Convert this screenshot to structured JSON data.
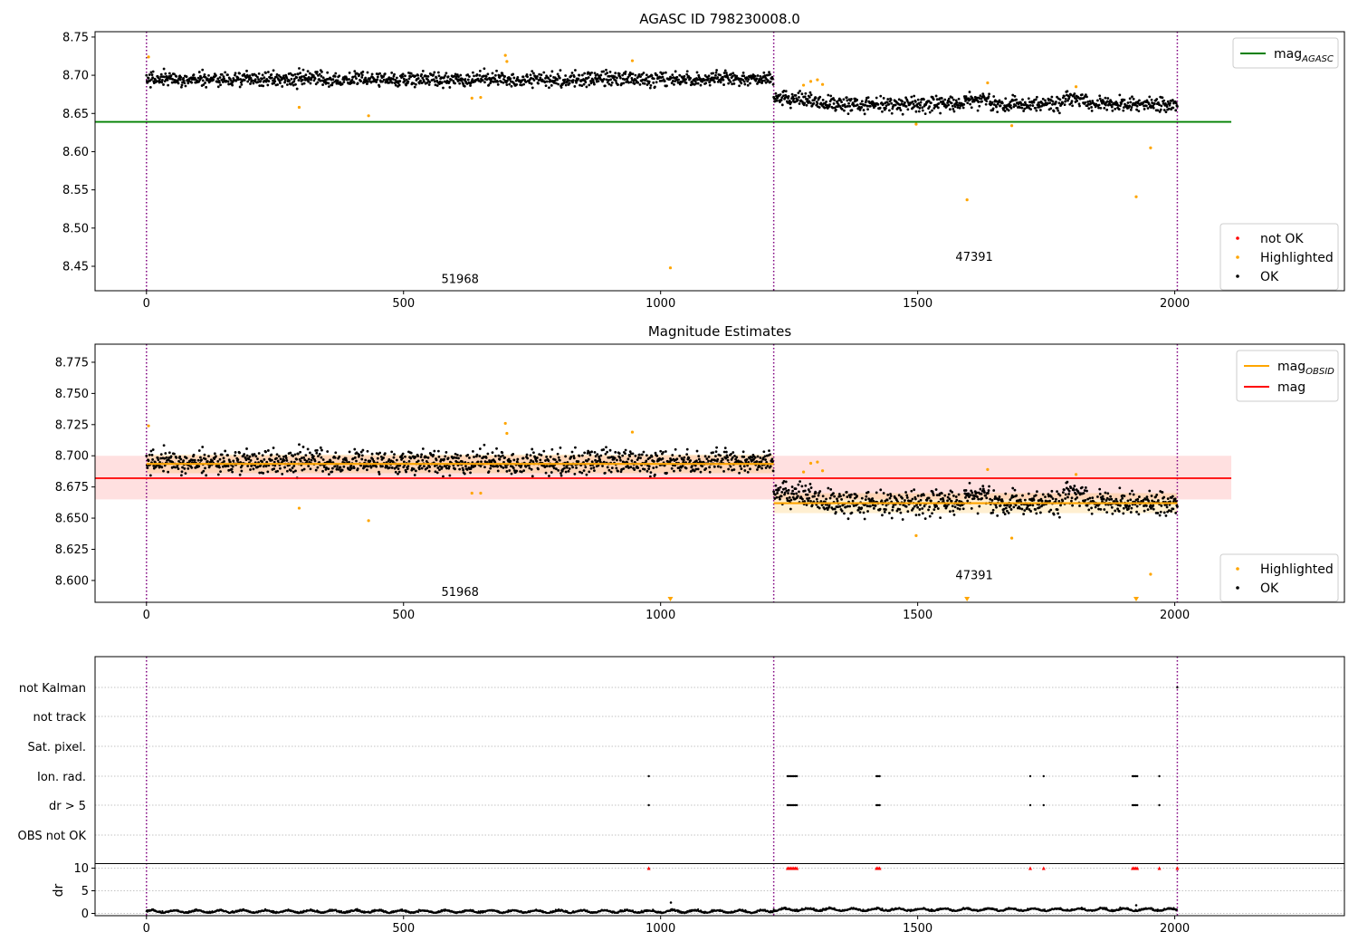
{
  "chart_data": [
    {
      "type": "scatter",
      "title": "AGASC ID 798230008.0",
      "xlim": [
        -100,
        2330
      ],
      "ylim": [
        8.418,
        8.757
      ],
      "x_ticks": [
        0,
        500,
        1000,
        1500,
        2000
      ],
      "y_ticks": [
        8.45,
        8.5,
        8.55,
        8.6,
        8.65,
        8.7,
        8.75
      ],
      "y_tick_labels": [
        "8.45",
        "8.50",
        "8.55",
        "8.60",
        "8.65",
        "8.70",
        "8.75"
      ],
      "obsid_boundaries": [
        0,
        1220,
        2005
      ],
      "obsid_labels": [
        {
          "text": "51968",
          "x": 610,
          "y": 8.428
        },
        {
          "text": "47391",
          "x": 1610,
          "y": 8.457
        }
      ],
      "reference_lines": [
        {
          "name": "mag",
          "subscript": "AGASC",
          "y": 8.639,
          "x_range": [
            -100,
            2110
          ],
          "color": "#008000"
        }
      ],
      "ok_segments": [
        {
          "x_range": [
            0,
            1218
          ],
          "mean": 8.695,
          "std": 0.007
        },
        {
          "x_range": [
            1222,
            2005
          ],
          "mean": 8.662,
          "std": 0.007
        }
      ],
      "highlighted": [
        {
          "x": 4,
          "y": 8.724
        },
        {
          "x": 297,
          "y": 8.658
        },
        {
          "x": 432,
          "y": 8.647
        },
        {
          "x": 633,
          "y": 8.67
        },
        {
          "x": 650,
          "y": 8.671
        },
        {
          "x": 698,
          "y": 8.726
        },
        {
          "x": 701,
          "y": 8.718
        },
        {
          "x": 945,
          "y": 8.719
        },
        {
          "x": 1019,
          "y": 8.448
        },
        {
          "x": 1278,
          "y": 8.687
        },
        {
          "x": 1292,
          "y": 8.692
        },
        {
          "x": 1305,
          "y": 8.694
        },
        {
          "x": 1315,
          "y": 8.688
        },
        {
          "x": 1497,
          "y": 8.636
        },
        {
          "x": 1596,
          "y": 8.537
        },
        {
          "x": 1636,
          "y": 8.69
        },
        {
          "x": 1683,
          "y": 8.634
        },
        {
          "x": 1808,
          "y": 8.685
        },
        {
          "x": 1925,
          "y": 8.541
        },
        {
          "x": 1953,
          "y": 8.605
        }
      ],
      "legend_lines": [
        {
          "label": "mag",
          "sub": "AGASC",
          "color": "#008000"
        }
      ],
      "legend_points": [
        {
          "label": "not OK",
          "color": "#ff0000"
        },
        {
          "label": "Highlighted",
          "color": "#ffa500"
        },
        {
          "label": "OK",
          "color": "#000000"
        }
      ]
    },
    {
      "type": "scatter",
      "title": "Magnitude Estimates",
      "xlim": [
        -100,
        2330
      ],
      "ylim": [
        8.5825,
        8.7895
      ],
      "x_ticks": [
        0,
        500,
        1000,
        1500,
        2000
      ],
      "y_ticks": [
        8.6,
        8.625,
        8.65,
        8.675,
        8.7,
        8.725,
        8.75,
        8.775
      ],
      "y_tick_labels": [
        "8.600",
        "8.625",
        "8.650",
        "8.675",
        "8.700",
        "8.725",
        "8.750",
        "8.775"
      ],
      "obsid_boundaries": [
        0,
        1220,
        2005
      ],
      "obsid_labels": [
        {
          "text": "51968",
          "x": 610,
          "y": 8.5875
        },
        {
          "text": "47391",
          "x": 1610,
          "y": 8.601
        }
      ],
      "mag_line": {
        "y": 8.682,
        "band": [
          8.665,
          8.7
        ],
        "x_range": [
          -100,
          2110
        ],
        "color": "#ff0000"
      },
      "obsid_mag": [
        {
          "x_range": [
            0,
            1220
          ],
          "y": 8.6935,
          "band": [
            8.686,
            8.701
          ]
        },
        {
          "x_range": [
            1220,
            2005
          ],
          "y": 8.662,
          "band": [
            8.654,
            8.67
          ]
        }
      ],
      "ok_segments": [
        {
          "x_range": [
            0,
            1218
          ],
          "mean": 8.695,
          "std": 0.007
        },
        {
          "x_range": [
            1222,
            2005
          ],
          "mean": 8.662,
          "std": 0.007
        }
      ],
      "highlighted": [
        {
          "x": 4,
          "y": 8.724
        },
        {
          "x": 297,
          "y": 8.658
        },
        {
          "x": 432,
          "y": 8.648
        },
        {
          "x": 633,
          "y": 8.67
        },
        {
          "x": 650,
          "y": 8.67
        },
        {
          "x": 698,
          "y": 8.726
        },
        {
          "x": 701,
          "y": 8.718
        },
        {
          "x": 945,
          "y": 8.719
        },
        {
          "x": 1278,
          "y": 8.687
        },
        {
          "x": 1292,
          "y": 8.694
        },
        {
          "x": 1305,
          "y": 8.695
        },
        {
          "x": 1315,
          "y": 8.688
        },
        {
          "x": 1497,
          "y": 8.636
        },
        {
          "x": 1636,
          "y": 8.689
        },
        {
          "x": 1683,
          "y": 8.634
        },
        {
          "x": 1808,
          "y": 8.685
        },
        {
          "x": 1953,
          "y": 8.605
        }
      ],
      "below_range": [
        1019,
        1596,
        1925
      ],
      "legend_lines": [
        {
          "label": "mag",
          "sub": "OBSID",
          "color": "#ffa500"
        },
        {
          "label": "mag",
          "sub": "",
          "color": "#ff0000"
        }
      ],
      "legend_points": [
        {
          "label": "Highlighted",
          "color": "#ffa500"
        },
        {
          "label": "OK",
          "color": "#000000"
        }
      ]
    },
    {
      "type": "scatter",
      "xlim": [
        -100,
        2330
      ],
      "x_ticks": [
        0,
        500,
        1000,
        1500,
        2000
      ],
      "obsid_boundaries": [
        0,
        1220,
        2005
      ],
      "flag_rows": [
        "not Kalman",
        "not track",
        "Sat. pixel.",
        "Ion. rad.",
        "dr > 5",
        "OBS not OK"
      ],
      "flags": {
        "Ion. rad.": [
          977,
          1247,
          1250,
          1253,
          1256,
          1259,
          1262,
          1265,
          1420,
          1423,
          1426,
          1719,
          1745,
          1918,
          1921,
          1924,
          1927,
          1970
        ],
        "dr > 5": [
          977,
          1247,
          1250,
          1253,
          1256,
          1259,
          1262,
          1265,
          1420,
          1423,
          1426,
          1719,
          1745,
          1918,
          1921,
          1924,
          1927,
          1970
        ],
        "not Kalman": [
          2005
        ]
      },
      "dr_ylim": [
        -0.5,
        10.5
      ],
      "dr_y_ticks": [
        0,
        5,
        10
      ],
      "dr_ylabel": "dr",
      "dr_high": [
        {
          "x": 977,
          "y": 10
        },
        {
          "x": 1247,
          "y": 10
        },
        {
          "x": 1250,
          "y": 10
        },
        {
          "x": 1253,
          "y": 10
        },
        {
          "x": 1256,
          "y": 10
        },
        {
          "x": 1259,
          "y": 10
        },
        {
          "x": 1262,
          "y": 10
        },
        {
          "x": 1265,
          "y": 10
        },
        {
          "x": 1420,
          "y": 10
        },
        {
          "x": 1423,
          "y": 10
        },
        {
          "x": 1426,
          "y": 10
        },
        {
          "x": 1719,
          "y": 10
        },
        {
          "x": 1745,
          "y": 10
        },
        {
          "x": 1918,
          "y": 10
        },
        {
          "x": 1921,
          "y": 10
        },
        {
          "x": 1924,
          "y": 10
        },
        {
          "x": 1927,
          "y": 10
        },
        {
          "x": 1970,
          "y": 10
        },
        {
          "x": 2005,
          "y": 10
        }
      ],
      "dr_outliers": [
        {
          "x": 1020,
          "y": 2.4
        },
        {
          "x": 1925,
          "y": 1.8
        }
      ],
      "dr_segments": [
        {
          "x_range": [
            0,
            1220
          ],
          "mean": 0.3
        },
        {
          "x_range": [
            1220,
            2005
          ],
          "mean": 0.7
        }
      ]
    }
  ]
}
